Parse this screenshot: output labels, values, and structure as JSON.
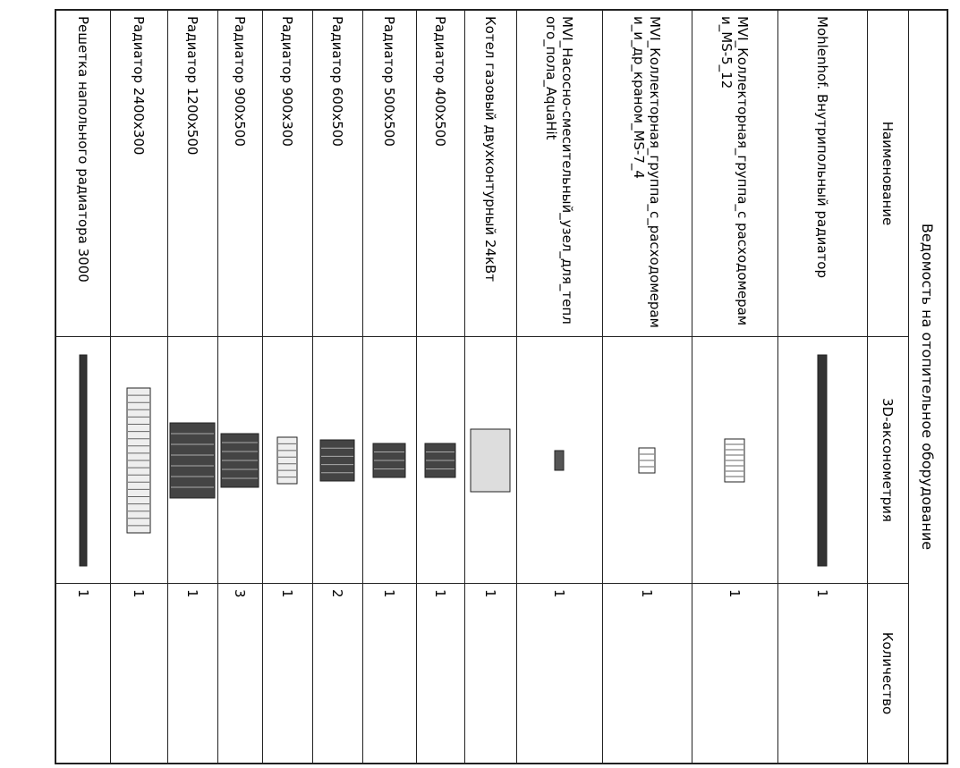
{
  "table": {
    "title": "Ведомость на отопительное оборудование",
    "header": [
      "Наименование",
      "3D-аксонометрия",
      "Количество"
    ],
    "rows": [
      {
        "name": "Mohlenhof. Внутрипольный радиатор",
        "quantity": 1
      },
      {
        "name": "MVI_Коллекторная_группа_с расходомерами_MS-5_12",
        "quantity": 1
      },
      {
        "name": "MVI_Коллекторная_группа_с_расходомерами_и_др_краном_MS-7_4",
        "quantity": 1
      },
      {
        "name": "MVI_Насосно-смесительный_узел_для_теплого_пола_AquaHit",
        "quantity": 1
      },
      {
        "name": "Котел газовый двухконтурный 24кВт",
        "quantity": 1
      },
      {
        "name": "Радиатор 400х500",
        "quantity": 1
      },
      {
        "name": "Радиатор 500х500",
        "quantity": 1
      },
      {
        "name": "Радиатор 600х500",
        "quantity": 2
      },
      {
        "name": "Радиатор 900х300",
        "quantity": 1
      },
      {
        "name": "Радиатор 900х500",
        "quantity": 3
      },
      {
        "name": "Радиатор 1200х500",
        "quantity": 1
      },
      {
        "name": "Радиатор 2400х300",
        "quantity": 1
      },
      {
        "name": "Решетка напольного радиатора 3000",
        "quantity": 1
      }
    ]
  }
}
